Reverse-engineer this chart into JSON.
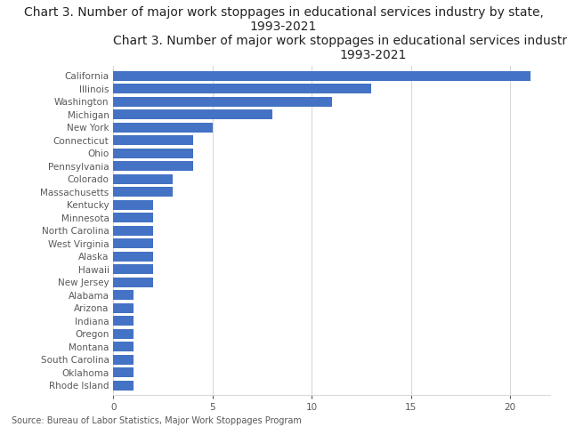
{
  "title_line1": "Chart 3. Number of major work stoppages in educational services industry by state,",
  "title_line2": "1993-2021",
  "source": "Source: Bureau of Labor Statistics, Major Work Stoppages Program",
  "bar_color": "#4472C4",
  "categories": [
    "California",
    "Illinois",
    "Washington",
    "Michigan",
    "New York",
    "Connecticut",
    "Ohio",
    "Pennsylvania",
    "Colorado",
    "Massachusetts",
    "Kentucky",
    "Minnesota",
    "North Carolina",
    "West Virginia",
    "Alaska",
    "Hawaii",
    "New Jersey",
    "Alabama",
    "Arizona",
    "Indiana",
    "Oregon",
    "Montana",
    "South Carolina",
    "Oklahoma",
    "Rhode Island"
  ],
  "values": [
    21,
    13,
    11,
    8,
    5,
    4,
    4,
    4,
    3,
    3,
    2,
    2,
    2,
    2,
    2,
    2,
    2,
    1,
    1,
    1,
    1,
    1,
    1,
    1,
    1
  ],
  "xlim": [
    0,
    22
  ],
  "xticks": [
    0,
    5,
    10,
    15,
    20
  ],
  "background_color": "#ffffff",
  "title_fontsize": 10,
  "tick_label_fontsize": 7.5,
  "source_fontsize": 7.0,
  "bar_height": 0.75,
  "label_color": "#595959",
  "grid_color": "#d9d9d9",
  "spine_color": "#d9d9d9"
}
